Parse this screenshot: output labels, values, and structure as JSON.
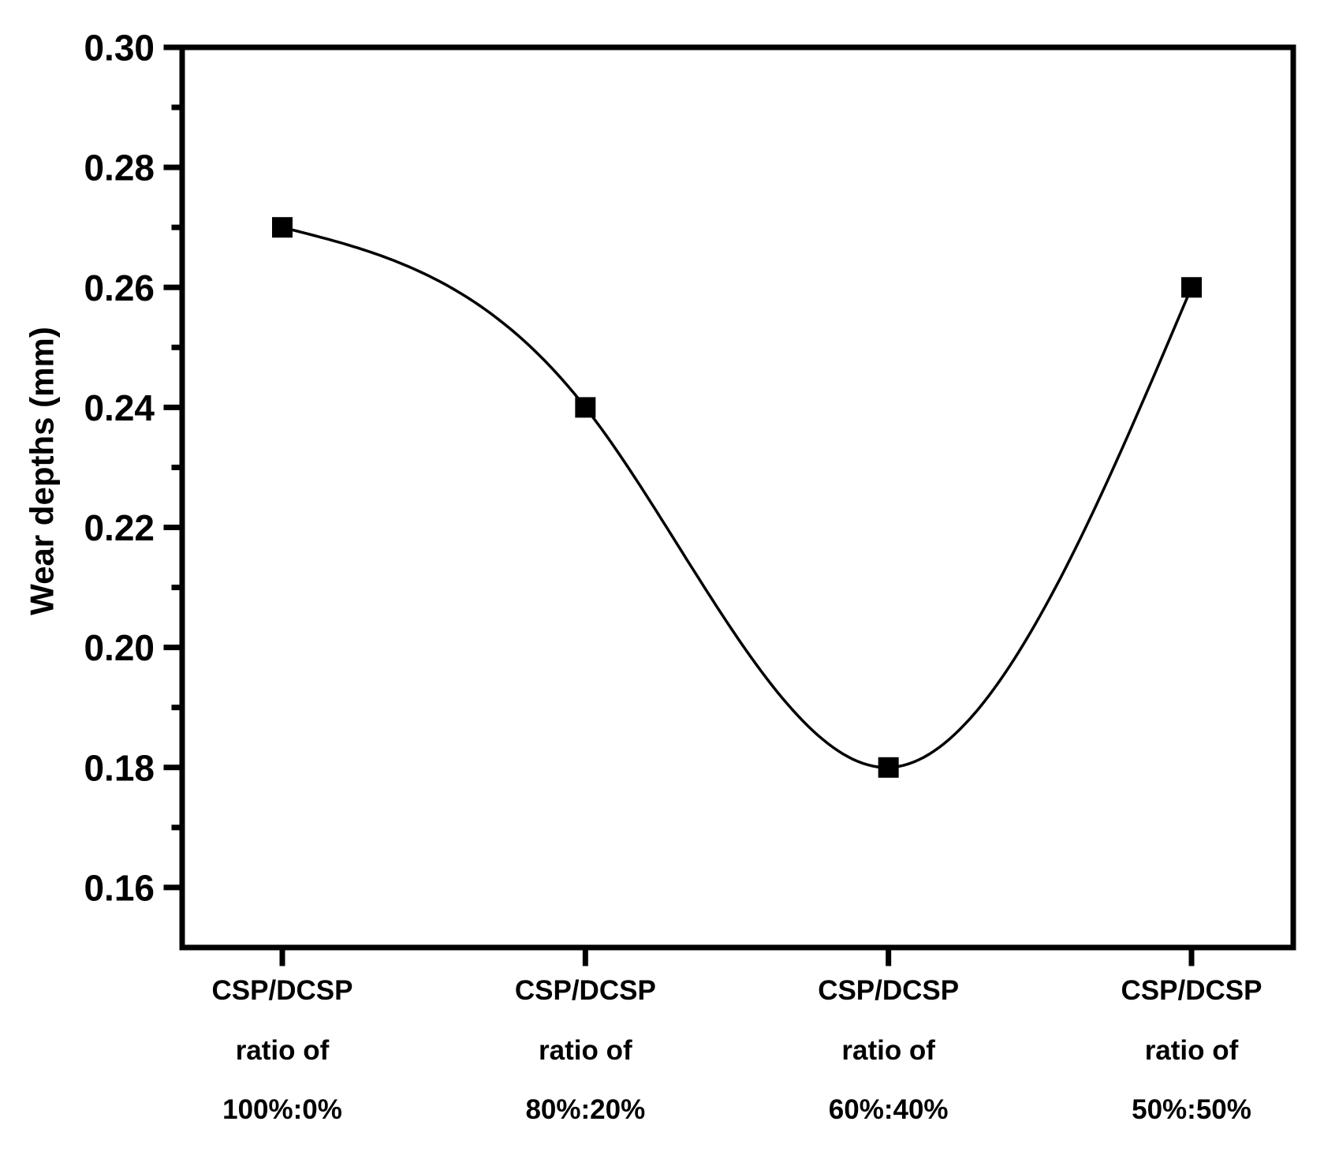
{
  "chart_data": {
    "type": "line",
    "title": "",
    "xlabel": "",
    "ylabel": "Wear depths (mm)",
    "categories": [
      [
        "CSP/DCSP",
        "ratio of",
        "100%:0%"
      ],
      [
        "CSP/DCSP",
        "ratio of",
        "80%:20%"
      ],
      [
        "CSP/DCSP",
        "ratio of",
        "60%:40%"
      ],
      [
        "CSP/DCSP",
        "ratio of",
        "50%:50%"
      ]
    ],
    "series": [
      {
        "name": "Wear depths",
        "values": [
          0.27,
          0.24,
          0.18,
          0.26
        ]
      }
    ],
    "ylim": [
      0.15,
      0.3
    ],
    "yticks_major": [
      {
        "value": 0.3,
        "label": "0.30"
      },
      {
        "value": 0.28,
        "label": "0.28"
      },
      {
        "value": 0.26,
        "label": "0.26"
      },
      {
        "value": 0.24,
        "label": "0.24"
      },
      {
        "value": 0.22,
        "label": "0.22"
      },
      {
        "value": 0.2,
        "label": "0.20"
      },
      {
        "value": 0.18,
        "label": "0.18"
      },
      {
        "value": 0.16,
        "label": "0.16"
      }
    ],
    "yticks_minor": [
      0.29,
      0.27,
      0.25,
      0.23,
      0.21,
      0.19,
      0.17
    ],
    "curve": "natural-cubic-spline",
    "marker": "filled-square",
    "grid": false,
    "legend": "none",
    "colors": {
      "line": "#000000",
      "marker": "#000000",
      "axis": "#000000",
      "text": "#000000",
      "background": "#ffffff"
    }
  }
}
